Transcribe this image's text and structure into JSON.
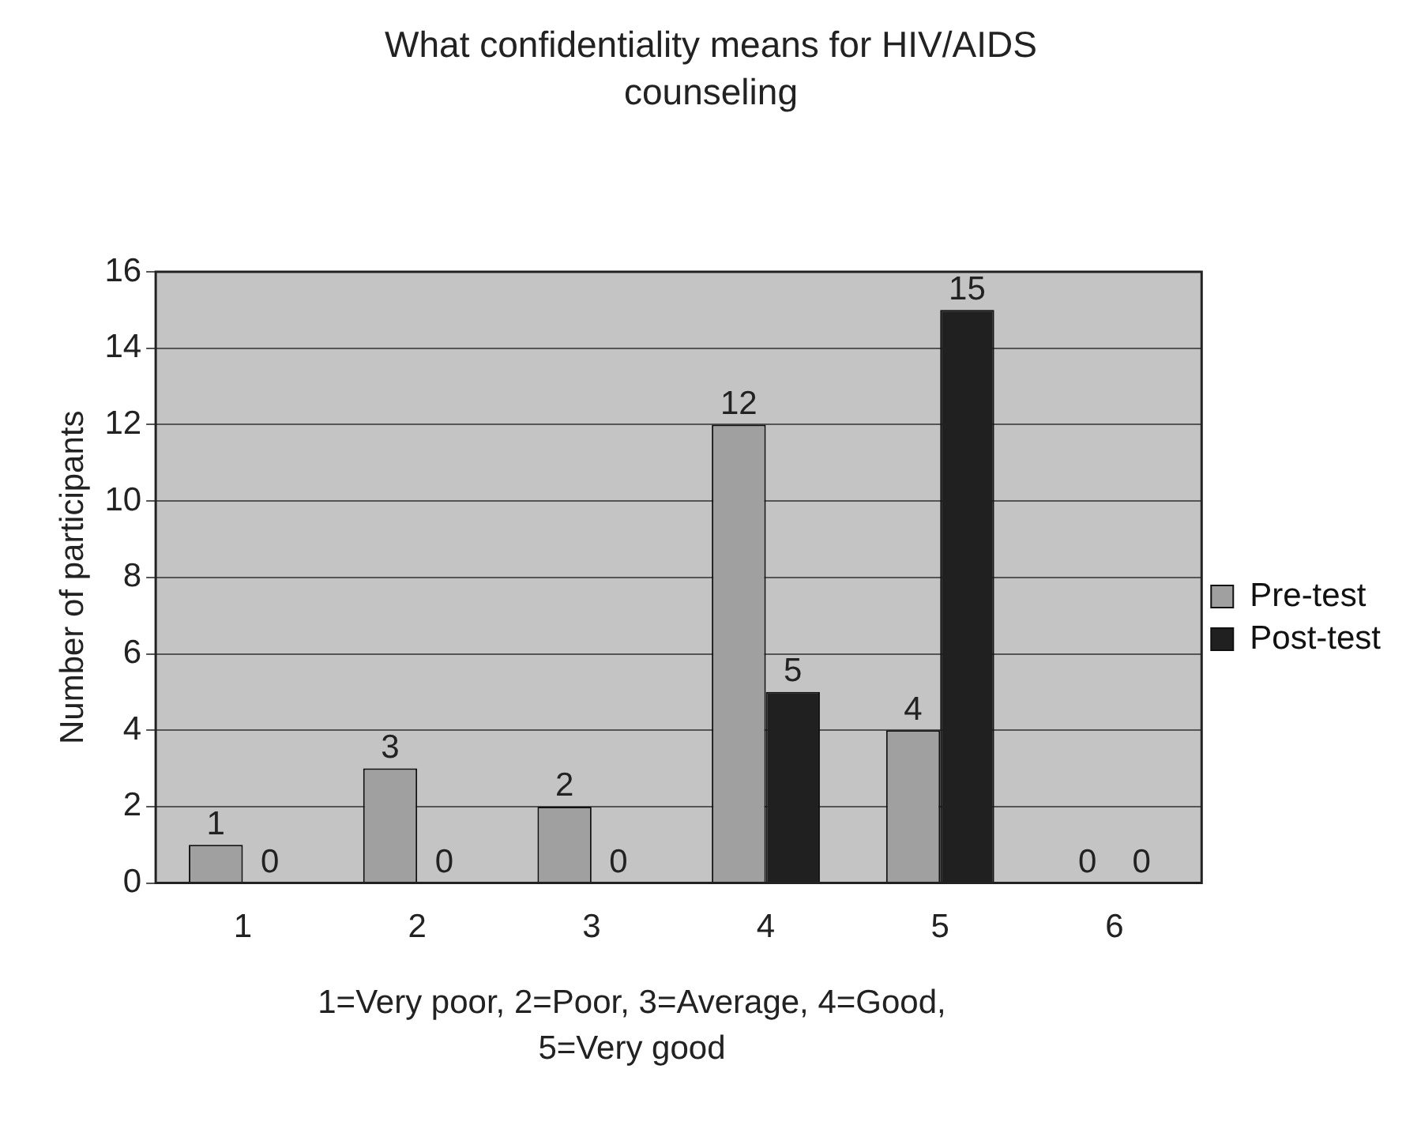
{
  "chart_data": {
    "type": "bar",
    "title": "What confidentiality means for HIV/AIDS counseling",
    "xlabel": "1=Very poor, 2=Poor, 3=Average, 4=Good, 5=Very good",
    "ylabel": "Number of participants",
    "categories": [
      "1",
      "2",
      "3",
      "4",
      "5",
      "6"
    ],
    "series": [
      {
        "name": "Pre-test",
        "color": "#a0a0a0",
        "values": [
          1,
          3,
          2,
          12,
          4,
          0
        ]
      },
      {
        "name": "Post-test",
        "color": "#202020",
        "values": [
          0,
          0,
          0,
          5,
          15,
          0
        ]
      }
    ],
    "ylim": [
      0,
      16
    ],
    "yticks": [
      0,
      2,
      4,
      6,
      8,
      10,
      12,
      14,
      16
    ],
    "grid": "y",
    "legend": "right",
    "data_labels": true
  }
}
